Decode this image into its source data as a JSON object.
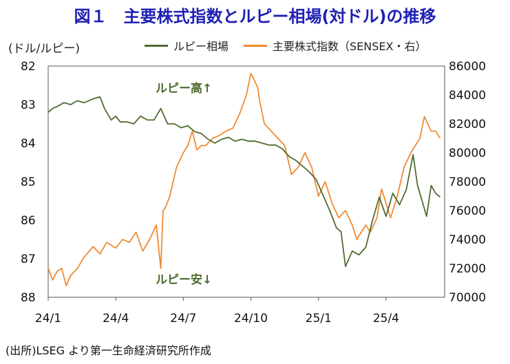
{
  "figure": {
    "title": "図１　主要株式指数とルピー相場(対ドル)の推移",
    "left_unit": "(ドル/ルピー)",
    "source": "(出所)LSEG より第一生命経済研究所作成"
  },
  "colors": {
    "rupee": "#4e6b2e",
    "sensex": "#ee8a32",
    "title": "#1f1fb4"
  },
  "chart_data": {
    "type": "line",
    "title": "図１　主要株式指数とルピー相場(対ドル)の推移",
    "x_tick_labels": [
      "24/1",
      "24/4",
      "24/7",
      "24/10",
      "25/1",
      "25/4"
    ],
    "x_tick_index": [
      0,
      3,
      6,
      9,
      12,
      15
    ],
    "x_range_months": [
      0,
      17.6
    ],
    "left_axis": {
      "label": "(ドル/ルピー)",
      "min": 82,
      "max": 88,
      "inverted": true,
      "ticks": [
        82,
        83,
        84,
        85,
        86,
        87,
        88
      ]
    },
    "right_axis": {
      "label": "主要株式指数（SENSEX・右）",
      "min": 70000,
      "max": 86000,
      "ticks": [
        "86000",
        "84000",
        "82000",
        "80000",
        "78000",
        "76000",
        "74000",
        "72000",
        "70000"
      ],
      "tick_values": [
        86000,
        84000,
        82000,
        80000,
        78000,
        76000,
        74000,
        72000,
        70000
      ]
    },
    "series": [
      {
        "name": "ルピー相場",
        "axis": "left",
        "color": "#4e6b2e",
        "x": [
          0,
          0.2,
          0.4,
          0.7,
          1.0,
          1.3,
          1.6,
          2.0,
          2.3,
          2.5,
          2.8,
          3.0,
          3.2,
          3.5,
          3.8,
          4.1,
          4.4,
          4.7,
          5.0,
          5.3,
          5.6,
          5.9,
          6.2,
          6.5,
          6.8,
          7.1,
          7.4,
          7.7,
          8.0,
          8.3,
          8.6,
          8.9,
          9.2,
          9.5,
          9.8,
          10.1,
          10.4,
          10.7,
          11.0,
          11.3,
          11.6,
          11.9,
          12.2,
          12.5,
          12.8,
          13.0,
          13.2,
          13.5,
          13.8,
          14.1,
          14.4,
          14.7,
          15.0,
          15.3,
          15.6,
          15.9,
          16.2,
          16.4,
          16.6,
          16.8,
          17.0,
          17.2,
          17.4
        ],
        "values": [
          83.2,
          83.1,
          83.05,
          82.95,
          83.0,
          82.9,
          82.95,
          82.85,
          82.8,
          83.1,
          83.4,
          83.3,
          83.45,
          83.45,
          83.5,
          83.3,
          83.4,
          83.4,
          83.1,
          83.5,
          83.5,
          83.6,
          83.55,
          83.7,
          83.75,
          83.9,
          84.0,
          83.9,
          83.85,
          83.95,
          83.9,
          83.95,
          83.95,
          84.0,
          84.05,
          84.05,
          84.15,
          84.35,
          84.45,
          84.6,
          84.75,
          84.95,
          85.35,
          85.75,
          86.2,
          86.3,
          87.2,
          86.8,
          86.9,
          86.7,
          86.0,
          85.4,
          85.9,
          85.3,
          85.6,
          85.2,
          84.3,
          85.1,
          85.5,
          85.9,
          85.1,
          85.3,
          85.4
        ]
      },
      {
        "name": "主要株式指数（SENSEX・右）",
        "axis": "right",
        "color": "#ee8a32",
        "x": [
          0,
          0.2,
          0.4,
          0.6,
          0.8,
          1.0,
          1.3,
          1.6,
          2.0,
          2.3,
          2.6,
          3.0,
          3.3,
          3.6,
          3.9,
          4.2,
          4.5,
          4.8,
          5.0,
          5.1,
          5.2,
          5.4,
          5.7,
          6.0,
          6.2,
          6.4,
          6.6,
          6.8,
          7.0,
          7.3,
          7.6,
          7.9,
          8.2,
          8.5,
          8.8,
          9.0,
          9.1,
          9.3,
          9.4,
          9.6,
          9.9,
          10.2,
          10.5,
          10.8,
          11.1,
          11.4,
          11.7,
          12.0,
          12.3,
          12.6,
          12.9,
          13.2,
          13.5,
          13.7,
          13.9,
          14.1,
          14.3,
          14.6,
          14.8,
          15.0,
          15.2,
          15.5,
          15.8,
          16.1,
          16.3,
          16.5,
          16.7,
          17.0,
          17.2,
          17.4
        ],
        "values": [
          72000,
          71200,
          71800,
          72000,
          70800,
          71500,
          72000,
          72800,
          73500,
          73000,
          73800,
          73400,
          74000,
          73800,
          74500,
          73200,
          74000,
          75000,
          72000,
          76000,
          76200,
          77000,
          79000,
          80000,
          80500,
          81500,
          80200,
          80500,
          80500,
          81000,
          81200,
          81500,
          81700,
          82700,
          84000,
          85500,
          85200,
          84500,
          83500,
          82000,
          81500,
          81000,
          80500,
          78500,
          79000,
          80000,
          79000,
          77000,
          78000,
          76500,
          75500,
          76000,
          75000,
          74000,
          74500,
          75000,
          74500,
          75500,
          77500,
          76500,
          75500,
          77000,
          79000,
          80000,
          80500,
          81000,
          82500,
          81500,
          81500,
          81000
        ]
      }
    ],
    "annotations": [
      "ルピー高↑",
      "ルピー安↓"
    ],
    "grid": false,
    "legend_position": "top"
  }
}
